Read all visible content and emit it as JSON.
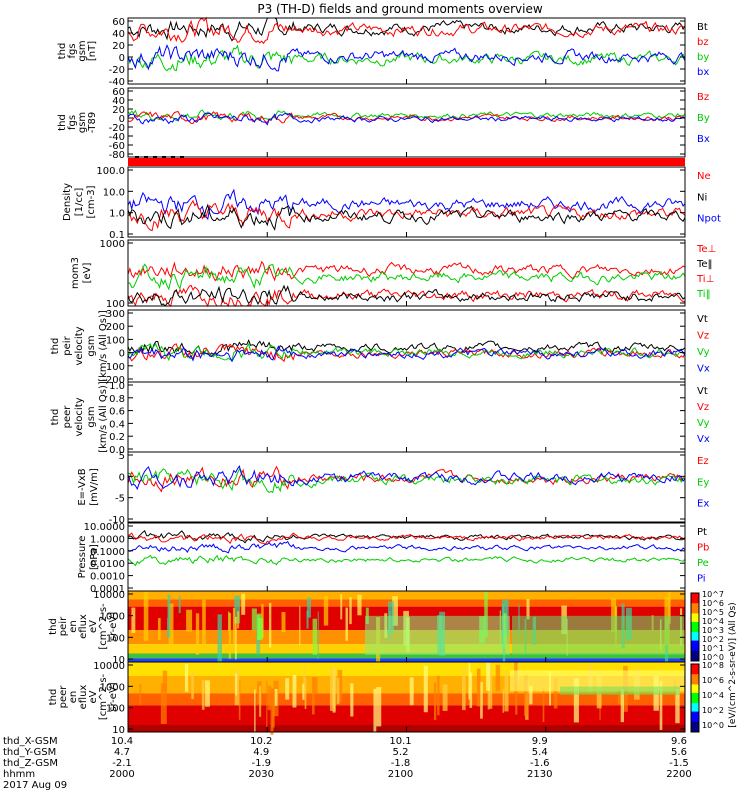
{
  "title": "P3 (TH-D) fields and ground moments overview",
  "colors": {
    "black": "#000000",
    "red": "#ff0000",
    "green": "#00cc00",
    "blue": "#0000ff"
  },
  "chart_data": [
    {
      "type": "line",
      "panel": "fgs",
      "ylabel": [
        "thd",
        "fgs",
        "gsm",
        "[nT]"
      ],
      "yticks": [
        "60",
        "40",
        "20",
        "0",
        "-20",
        "-40"
      ],
      "ylim": [
        -40,
        60
      ],
      "legend": [
        {
          "name": "Bt",
          "color": "black"
        },
        {
          "name": "bz",
          "color": "red"
        },
        {
          "name": "by",
          "color": "green"
        },
        {
          "name": "bx",
          "color": "blue"
        }
      ],
      "series": [
        {
          "name": "Bt",
          "level": 45
        },
        {
          "name": "bz",
          "level": 43
        },
        {
          "name": "by",
          "level": -2
        },
        {
          "name": "bx",
          "level": 2
        }
      ]
    },
    {
      "type": "line",
      "panel": "fgs-residual",
      "ylabel": [
        "thd",
        "fgs",
        "gsm",
        "-T89"
      ],
      "yticks": [
        "60",
        "40",
        "20",
        "0",
        "-20",
        "-40",
        "-60",
        "-80"
      ],
      "ylim": [
        -80,
        60
      ],
      "legend": [
        {
          "name": "Bz",
          "color": "red"
        },
        {
          "name": "By",
          "color": "green"
        },
        {
          "name": "Bx",
          "color": "blue"
        }
      ],
      "series": [
        {
          "name": "By",
          "level": 5
        },
        {
          "name": "Bz",
          "level": 0
        },
        {
          "name": "Bx",
          "level": -3
        }
      ]
    },
    {
      "type": "line",
      "panel": "density",
      "scale": "log",
      "ylabel": [
        "Density",
        "[1/cc]",
        "[cm-3]"
      ],
      "yticks": [
        "100.0",
        "10.0",
        "1.0",
        "0.1"
      ],
      "ylim": [
        0.1,
        100
      ],
      "legend": [
        {
          "name": "Ne",
          "color": "red"
        },
        {
          "name": "Ni",
          "color": "black"
        },
        {
          "name": "Npot",
          "color": "blue"
        }
      ],
      "series": [
        {
          "name": "Npot",
          "level": 2.5
        },
        {
          "name": "Ne",
          "level": 1.0
        },
        {
          "name": "Ni",
          "level": 0.8
        }
      ]
    },
    {
      "type": "line",
      "panel": "temperature",
      "scale": "log",
      "ylabel": [
        "mom3",
        "[eV]"
      ],
      "yticks": [
        "1000",
        "100"
      ],
      "ylim": [
        50,
        10000
      ],
      "legend": [
        {
          "name": "Te⊥",
          "color": "red"
        },
        {
          "name": "Te‖",
          "color": "black"
        },
        {
          "name": "Ti⊥",
          "color": "red"
        },
        {
          "name": "Ti‖",
          "color": "green"
        }
      ],
      "series": [
        {
          "name": "Ti⊥",
          "level": 900
        },
        {
          "name": "Ti‖",
          "level": 500
        },
        {
          "name": "Te⊥",
          "level": 120
        },
        {
          "name": "Te‖",
          "level": 110
        }
      ]
    },
    {
      "type": "line",
      "panel": "ion-velocity",
      "ylabel": [
        "thd",
        "peir",
        "velocity",
        "gsm",
        "[km/s (All Qs)]"
      ],
      "yticks": [
        "300",
        "200",
        "100",
        "0",
        "-100",
        "-200"
      ],
      "ylim": [
        -200,
        300
      ],
      "legend": [
        {
          "name": "Vt",
          "color": "black"
        },
        {
          "name": "Vz",
          "color": "red"
        },
        {
          "name": "Vy",
          "color": "green"
        },
        {
          "name": "Vx",
          "color": "blue"
        }
      ],
      "series": [
        {
          "name": "Vt",
          "level": 40
        },
        {
          "name": "Vz",
          "level": 0
        },
        {
          "name": "Vy",
          "level": 5
        },
        {
          "name": "Vx",
          "level": -5
        }
      ]
    },
    {
      "type": "line",
      "panel": "electron-velocity",
      "ylabel": [
        "thd",
        "peer",
        "velocity",
        "gsm",
        "[km/s (All Qs)]"
      ],
      "yticks": [
        "1.0",
        "0.8",
        "0.6",
        "0.4",
        "0.2",
        "0.0"
      ],
      "ylim": [
        0,
        1
      ],
      "legend": [
        {
          "name": "Vt",
          "color": "black"
        },
        {
          "name": "Vz",
          "color": "red"
        },
        {
          "name": "Vy",
          "color": "green"
        },
        {
          "name": "Vx",
          "color": "blue"
        }
      ],
      "series": []
    },
    {
      "type": "line",
      "panel": "e-field",
      "ylabel": [
        "E=-VxB",
        "[mV/m]"
      ],
      "yticks": [
        "5",
        "0",
        "-5",
        "-10"
      ],
      "ylim": [
        -10,
        6
      ],
      "legend": [
        {
          "name": "Ez",
          "color": "red"
        },
        {
          "name": "Ey",
          "color": "green"
        },
        {
          "name": "Ex",
          "color": "blue"
        }
      ],
      "series": [
        {
          "name": "Ez",
          "level": 0
        },
        {
          "name": "Ey",
          "level": -0.3
        },
        {
          "name": "Ex",
          "level": 0.2
        }
      ]
    },
    {
      "type": "line",
      "panel": "pressure",
      "scale": "log",
      "ylabel": [
        "Pressure",
        "[nPa]"
      ],
      "yticks": [
        "10.0000",
        "1.0000",
        "0.1000",
        "0.0100",
        "0.0010",
        "0.0001"
      ],
      "ylim": [
        0.0001,
        10
      ],
      "legend": [
        {
          "name": "Pt",
          "color": "black"
        },
        {
          "name": "Pb",
          "color": "red"
        },
        {
          "name": "Pe",
          "color": "green"
        },
        {
          "name": "Pi",
          "color": "blue"
        }
      ],
      "series": [
        {
          "name": "Pt",
          "level": 0.9
        },
        {
          "name": "Pb",
          "level": 0.8
        },
        {
          "name": "Pi",
          "level": 0.15
        },
        {
          "name": "Pe",
          "level": 0.02
        }
      ]
    },
    {
      "type": "heatmap",
      "panel": "ion-spectrogram",
      "ylabel": [
        "thd",
        "peir",
        "en",
        "eflux",
        "eV",
        "[cm^2-s-",
        "sr-eV]"
      ],
      "yticks": [
        "10000",
        "1000",
        "100",
        "10"
      ],
      "scale": "log"
    },
    {
      "type": "heatmap",
      "panel": "electron-spectrogram",
      "ylabel": [
        "thd",
        "peer",
        "en",
        "eflux",
        "eV",
        "[cm^2-s-",
        "sr-eV]"
      ],
      "yticks": [
        "10000",
        "1000",
        "100",
        "10"
      ],
      "scale": "log"
    }
  ],
  "colorbar": {
    "label": "[eV/(cm^2-s-sr-eV)] (All Qs)",
    "upper_ticks": [
      "10^7",
      "10^6",
      "10^5",
      "10^4",
      "10^3",
      "10^2",
      "10^1",
      "10^0"
    ],
    "lower_ticks": [
      "10^8",
      "10^6",
      "10^4",
      "10^2",
      "10^0"
    ]
  },
  "xaxis": {
    "row_labels": [
      "thd_X-GSM",
      "thd_Y-GSM",
      "thd_Z-GSM",
      "hhmm",
      "2017 Aug 09"
    ],
    "columns": [
      {
        "x": "10.4",
        "y": "4.7",
        "z": "-2.1",
        "time": "2000"
      },
      {
        "x": "10.2",
        "y": "4.9",
        "z": "-1.9",
        "time": "2030"
      },
      {
        "x": "10.1",
        "y": "5.2",
        "z": "-1.8",
        "time": "2100"
      },
      {
        "x": "9.9",
        "y": "5.4",
        "z": "-1.6",
        "time": "2130"
      },
      {
        "x": "9.6",
        "y": "5.6",
        "z": "-1.5",
        "time": "2200"
      }
    ]
  }
}
